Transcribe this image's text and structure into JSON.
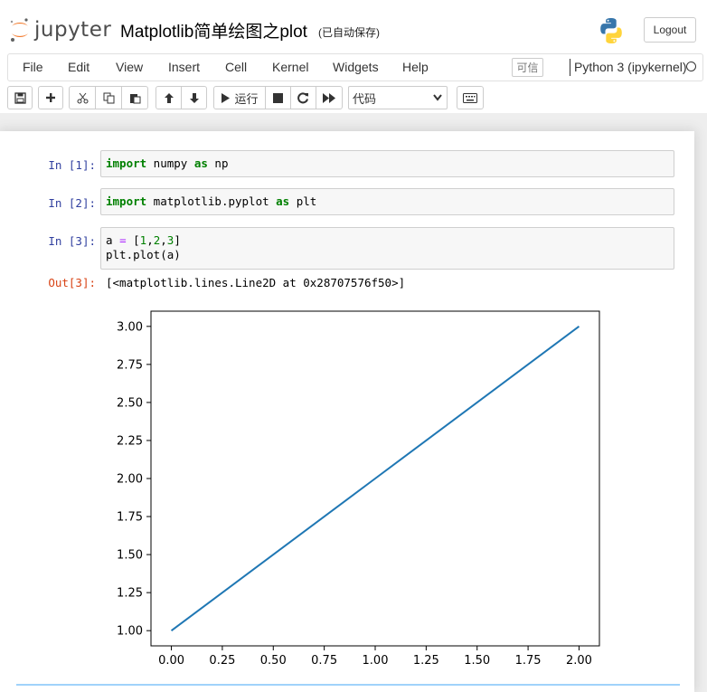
{
  "header": {
    "logo_text": "jupyter",
    "notebook_title": "Matplotlib简单绘图之plot",
    "save_status": "(已自动保存)",
    "logout_label": "Logout"
  },
  "menubar": {
    "items": [
      "File",
      "Edit",
      "View",
      "Insert",
      "Cell",
      "Kernel",
      "Widgets",
      "Help"
    ],
    "trusted_label": "可信",
    "kernel_name": "Python 3 (ipykernel)"
  },
  "toolbar": {
    "run_label": "运行",
    "cell_type": "代码",
    "icons": [
      "save-icon",
      "plus-icon",
      "cut-icon",
      "copy-icon",
      "paste-icon",
      "arrow-up-icon",
      "arrow-down-icon",
      "run-icon",
      "stop-icon",
      "restart-icon",
      "fast-forward-icon",
      "keyboard-icon"
    ]
  },
  "cells": [
    {
      "prompt": "In  [1]:",
      "code": [
        [
          {
            "t": "import",
            "c": "kw"
          },
          {
            "t": " numpy ",
            "c": ""
          },
          {
            "t": "as",
            "c": "kw"
          },
          {
            "t": " np",
            "c": ""
          }
        ]
      ]
    },
    {
      "prompt": "In  [2]:",
      "code": [
        [
          {
            "t": "import",
            "c": "kw"
          },
          {
            "t": " matplotlib.pyplot ",
            "c": ""
          },
          {
            "t": "as",
            "c": "kw"
          },
          {
            "t": " plt",
            "c": ""
          }
        ]
      ]
    },
    {
      "prompt": "In  [3]:",
      "code": [
        [
          {
            "t": "a ",
            "c": ""
          },
          {
            "t": "=",
            "c": "op"
          },
          {
            "t": " [",
            "c": ""
          },
          {
            "t": "1",
            "c": "num"
          },
          {
            "t": ",",
            "c": ""
          },
          {
            "t": "2",
            "c": "num"
          },
          {
            "t": ",",
            "c": ""
          },
          {
            "t": "3",
            "c": "num"
          },
          {
            "t": "]",
            "c": ""
          }
        ],
        [
          {
            "t": "plt.plot(a)",
            "c": ""
          }
        ]
      ],
      "out_prompt": "Out[3]:",
      "output": "[<matplotlib.lines.Line2D at 0x28707576f50>]"
    }
  ],
  "chart_data": {
    "type": "line",
    "x": [
      0,
      1,
      2
    ],
    "series": [
      {
        "values": [
          1,
          2,
          3
        ],
        "color": "#1f77b4"
      }
    ],
    "xlim": [
      -0.1,
      2.1
    ],
    "ylim": [
      0.9,
      3.1
    ],
    "xticks": [
      "0.00",
      "0.25",
      "0.50",
      "0.75",
      "1.00",
      "1.25",
      "1.50",
      "1.75",
      "2.00"
    ],
    "yticks": [
      "1.00",
      "1.25",
      "1.50",
      "1.75",
      "2.00",
      "2.25",
      "2.50",
      "2.75",
      "3.00"
    ],
    "grid": false,
    "title": "",
    "xlabel": "",
    "ylabel": ""
  }
}
